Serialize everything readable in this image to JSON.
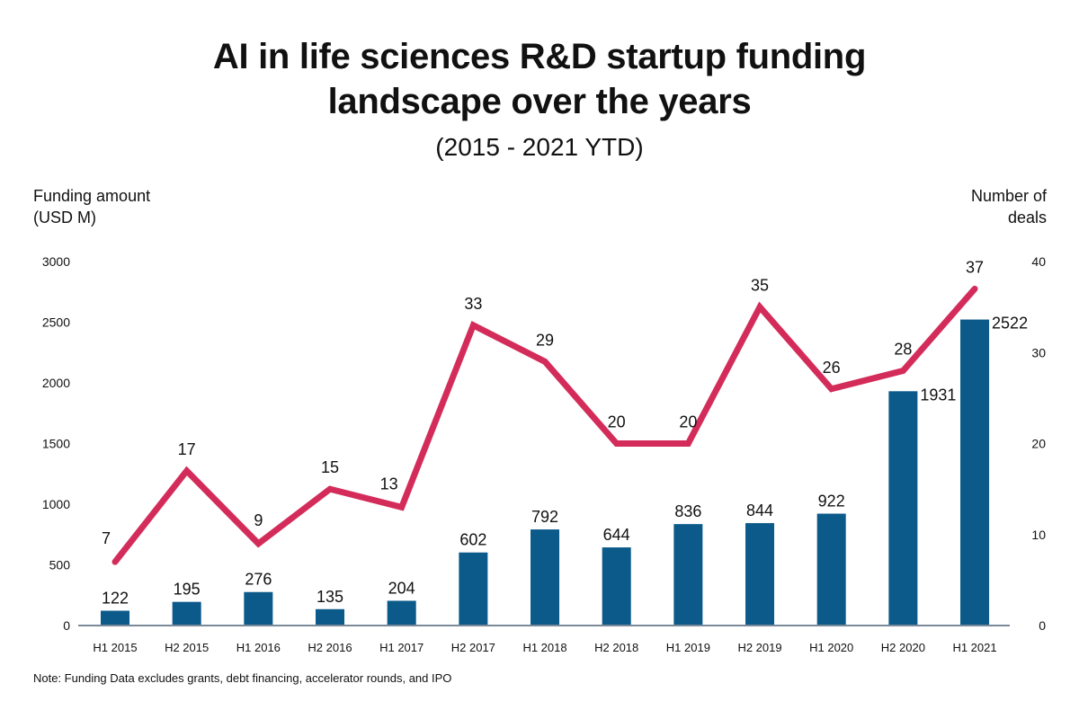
{
  "chart_data": {
    "type": "bar+line",
    "title": "AI in life sciences R&D startup funding landscape over the years",
    "title_lines": [
      "AI in life sciences R&D startup funding",
      "landscape over the years"
    ],
    "subtitle": "(2015 - 2021 YTD)",
    "ylabel_left": [
      "Funding amount",
      "(USD M)"
    ],
    "ylabel_right": [
      "Number of",
      "deals"
    ],
    "note": "Note: Funding Data excludes grants, debt financing, accelerator rounds, and IPO",
    "categories": [
      "H1 2015",
      "H2 2015",
      "H1 2016",
      "H2 2016",
      "H1 2017",
      "H2 2017",
      "H1 2018",
      "H2 2018",
      "H1 2019",
      "H2 2019",
      "H1 2020",
      "H2 2020",
      "H1 2021"
    ],
    "series": [
      {
        "name": "Funding amount (USD M)",
        "type": "bar",
        "axis": "left",
        "color": "#0b5a8a",
        "values": [
          122,
          195,
          276,
          135,
          204,
          602,
          792,
          644,
          836,
          844,
          922,
          1931,
          2522
        ]
      },
      {
        "name": "Number of deals",
        "type": "line",
        "axis": "right",
        "color": "#d42c5a",
        "values": [
          7,
          17,
          9,
          15,
          13,
          33,
          29,
          20,
          20,
          35,
          26,
          28,
          37
        ]
      }
    ],
    "ylim_left": [
      0,
      3000
    ],
    "yticks_left": [
      0,
      500,
      1000,
      1500,
      2000,
      2500,
      3000
    ],
    "ylim_right": [
      0,
      40
    ],
    "yticks_right": [
      0,
      10,
      20,
      30,
      40
    ],
    "grid": false,
    "legend": "none"
  }
}
